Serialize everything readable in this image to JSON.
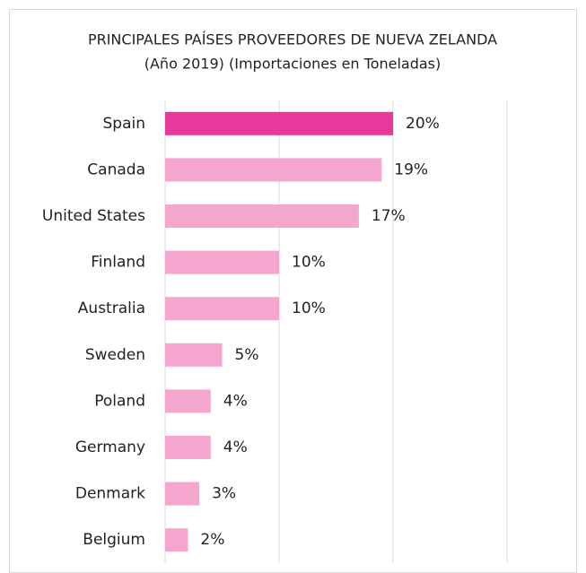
{
  "chart_data": {
    "type": "bar",
    "orientation": "horizontal",
    "title": "PRINCIPALES PAÍSES PROVEEDORES DE NUEVA ZELANDA",
    "subtitle": "(Año 2019) (Importaciones en Toneladas)",
    "categories": [
      "Spain",
      "Canada",
      "United States",
      "Finland",
      "Australia",
      "Sweden",
      "Poland",
      "Germany",
      "Denmark",
      "Belgium"
    ],
    "values": [
      20,
      19,
      17,
      10,
      10,
      5,
      4,
      4,
      3,
      2
    ],
    "value_labels": [
      "20%",
      "19%",
      "17%",
      "10%",
      "10%",
      "5%",
      "4%",
      "4%",
      "3%",
      "2%"
    ],
    "colors": [
      "#e6399b",
      "#f4a6cf",
      "#f4a6cf",
      "#f4a6cf",
      "#f4a6cf",
      "#f4a6cf",
      "#f4a6cf",
      "#f4a6cf",
      "#f4a6cf",
      "#f4a6cf"
    ],
    "xlim": [
      0,
      30
    ],
    "xticks": [
      0,
      10,
      20,
      30
    ],
    "grid": true
  }
}
